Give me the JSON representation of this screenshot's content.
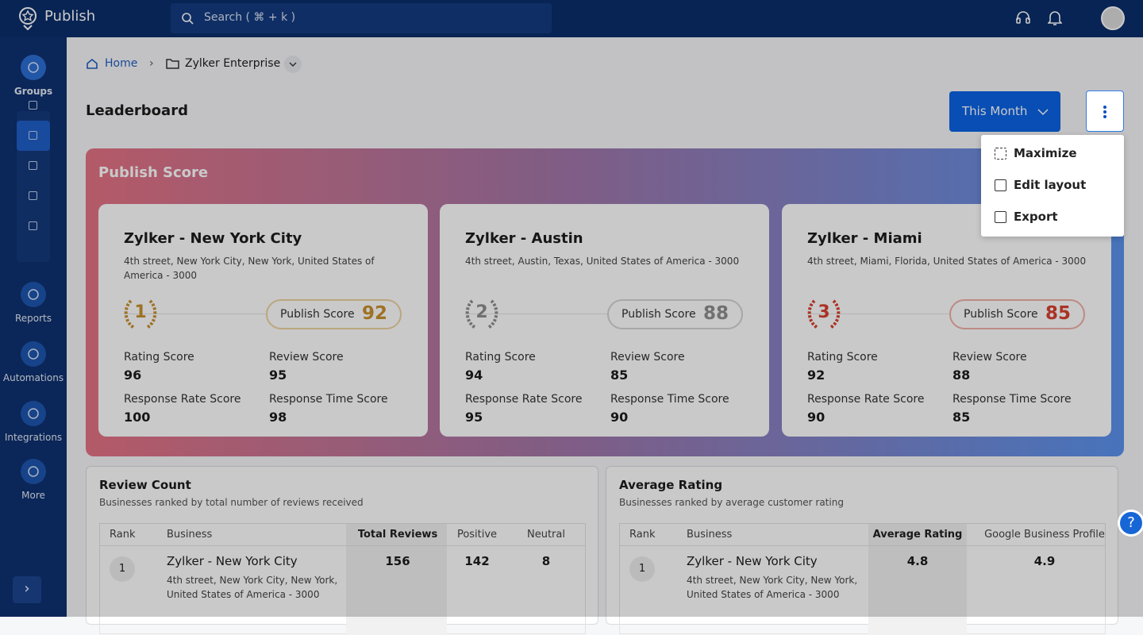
{
  "app": {
    "name": "Publish",
    "search": "Search ( ⌘ + k )"
  },
  "sidebar": {
    "items": [
      "Groups",
      "Reports",
      "Automations",
      "Integrations",
      "More"
    ]
  },
  "breadcrumb": {
    "home": "Home",
    "current": "Zylker Enterprise"
  },
  "header": {
    "title": "Leaderboard",
    "period": "This Month"
  },
  "menu": {
    "items": [
      "Maximize",
      "Edit layout",
      "Export"
    ]
  },
  "publish_score": {
    "title": "Publish Score",
    "score_label": "Publish Score",
    "metric_labels": [
      "Rating Score",
      "Review Score",
      "Response Rate Score",
      "Response Time Score"
    ],
    "cards": [
      {
        "rank": 1,
        "name": "Zylker - New York City",
        "address": "4th street, New York City, New York, United States of America - 3000",
        "score": 92,
        "metrics": [
          96,
          95,
          100,
          98
        ]
      },
      {
        "rank": 2,
        "name": "Zylker - Austin",
        "address": "4th street, Austin, Texas, United States of America - 3000",
        "score": 88,
        "metrics": [
          94,
          85,
          95,
          90
        ]
      },
      {
        "rank": 3,
        "name": "Zylker - Miami",
        "address": "4th street, Miami, Florida, United States of America - 3000",
        "score": 85,
        "metrics": [
          92,
          88,
          90,
          85
        ]
      }
    ]
  },
  "review_count": {
    "title": "Review Count",
    "subtitle": "Businesses ranked by total number of reviews received",
    "columns": [
      "Rank",
      "Business",
      "Total Reviews",
      "Positive",
      "Neutral"
    ],
    "rows": [
      {
        "rank": 1,
        "business": "Zylker - New York City",
        "address": "4th street, New York City, New York, United States of America - 3000",
        "values": [
          156,
          142,
          8
        ]
      }
    ]
  },
  "average_rating": {
    "title": "Average Rating",
    "subtitle": "Businesses ranked by average customer rating",
    "columns": [
      "Rank",
      "Business",
      "Average Rating",
      "Google Business Profile"
    ],
    "rows": [
      {
        "rank": 1,
        "business": "Zylker - New York City",
        "address": "4th street, New York City, New York, United States of America - 3000",
        "values": [
          4.8,
          4.9
        ]
      }
    ]
  }
}
